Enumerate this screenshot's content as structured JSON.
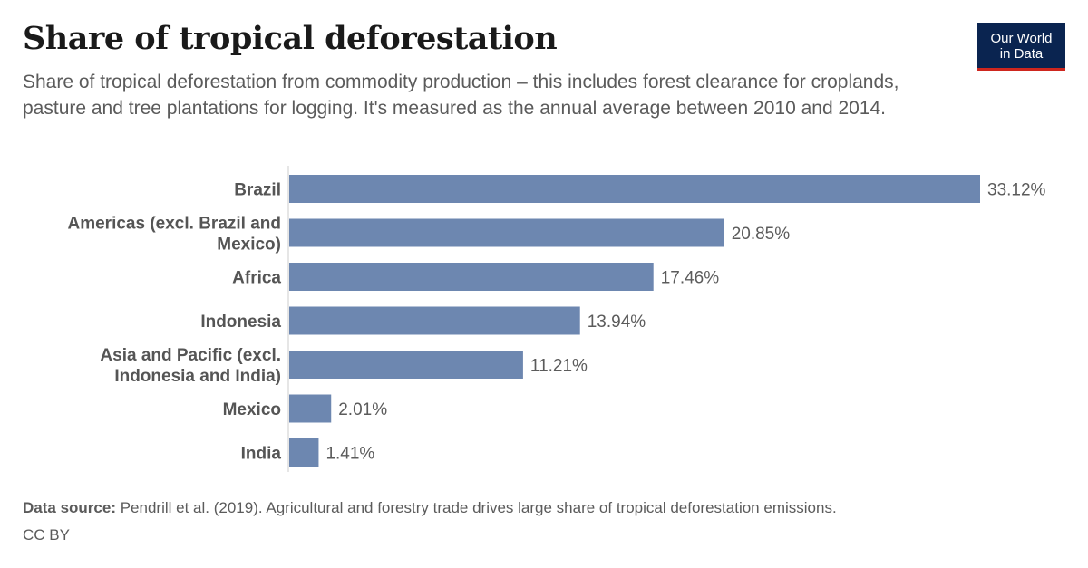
{
  "header": {
    "title": "Share of tropical deforestation",
    "subtitle": "Share of tropical deforestation from commodity production – this includes forest clearance for croplands, pasture and tree plantations for logging. It's measured as the annual average between 2010 and 2014.",
    "logo_line1": "Our World",
    "logo_line2": "in Data"
  },
  "footer": {
    "source_label": "Data source:",
    "source_text": "Pendrill et al. (2019). Agricultural and forestry trade drives large share of tropical deforestation emissions.",
    "license": "CC BY"
  },
  "chart_data": {
    "type": "bar",
    "orientation": "horizontal",
    "categories": [
      [
        "Brazil"
      ],
      [
        "Americas (excl. Brazil and",
        "Mexico)"
      ],
      [
        "Africa"
      ],
      [
        "Indonesia"
      ],
      [
        "Asia and Pacific (excl.",
        "Indonesia and India)"
      ],
      [
        "Mexico"
      ],
      [
        "India"
      ]
    ],
    "values": [
      33.12,
      20.85,
      17.46,
      13.94,
      11.21,
      2.01,
      1.41
    ],
    "value_labels": [
      "33.12%",
      "20.85%",
      "17.46%",
      "13.94%",
      "11.21%",
      "2.01%",
      "1.41%"
    ],
    "unit": "%",
    "bar_color": "#6d87b0",
    "grid": false,
    "legend": "none"
  }
}
